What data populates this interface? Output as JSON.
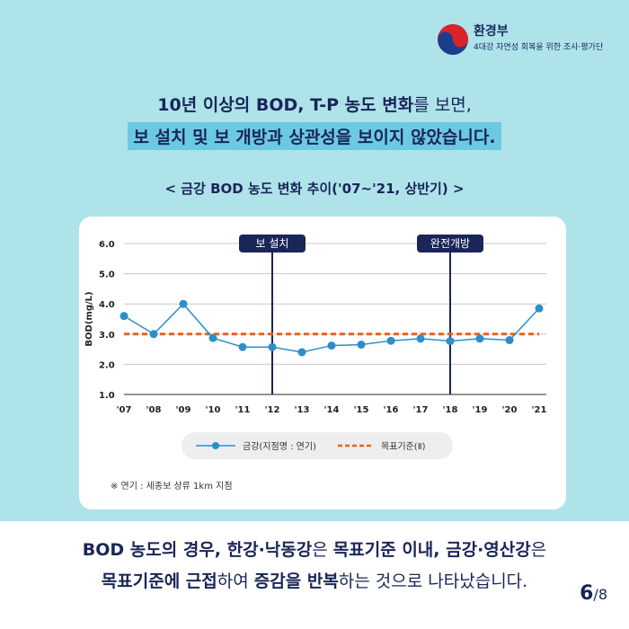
{
  "header": {
    "org_name": "환경부",
    "org_sub": "4대강 자연성 회복을 위한 조사·평가단"
  },
  "headline": {
    "line1_bold": "10년 이상의 BOD, T-P 농도 변화",
    "line1_rest": "를 보면,",
    "line2": "보 설치 및 보 개방과 상관성을 보이지 않았습니다."
  },
  "subtitle": "< 금강 BOD 농도 변화 추이('07~'21, 상반기) >",
  "footnote": "※ 연기 : 세종보 상류 1km 지점",
  "bottom": {
    "l1_b1": "BOD 농도의 경우, 한강·낙동강",
    "l1_t1": "은 ",
    "l1_b2": "목표기준 이내, 금강·영산강",
    "l1_t2": "은",
    "l2_b1": "목표기준에 근접",
    "l2_t1": "하여 ",
    "l2_b2": "증감을 반복",
    "l2_t2": "하는 것으로 나타났습니다."
  },
  "pager": {
    "current": "6",
    "total": "/8"
  },
  "chart_data": {
    "type": "line",
    "categories": [
      "'07",
      "'08",
      "'09",
      "'10",
      "'11",
      "'12",
      "'13",
      "'14",
      "'15",
      "'16",
      "'17",
      "'18",
      "'19",
      "'20",
      "'21"
    ],
    "series": [
      {
        "name": "금강(지점명 : 연기)",
        "values": [
          3.6,
          3.0,
          4.0,
          2.87,
          2.57,
          2.57,
          2.4,
          2.62,
          2.65,
          2.78,
          2.85,
          2.77,
          2.85,
          2.8,
          3.85
        ],
        "color": "#2b8fc9"
      }
    ],
    "reference": {
      "name": "목표기준(Ⅱ)",
      "value": 3.0,
      "color": "#e8621c"
    },
    "events": [
      {
        "label": "보 설치",
        "category": "'12"
      },
      {
        "label": "완전개방",
        "category": "'18"
      }
    ],
    "yticks": [
      "1.0",
      "2.0",
      "3.0",
      "4.0",
      "5.0",
      "6.0"
    ],
    "ylabel": "BOD(mg/L)",
    "ylim": [
      1.0,
      6.0
    ],
    "grid": true,
    "legend_position": "bottom"
  }
}
